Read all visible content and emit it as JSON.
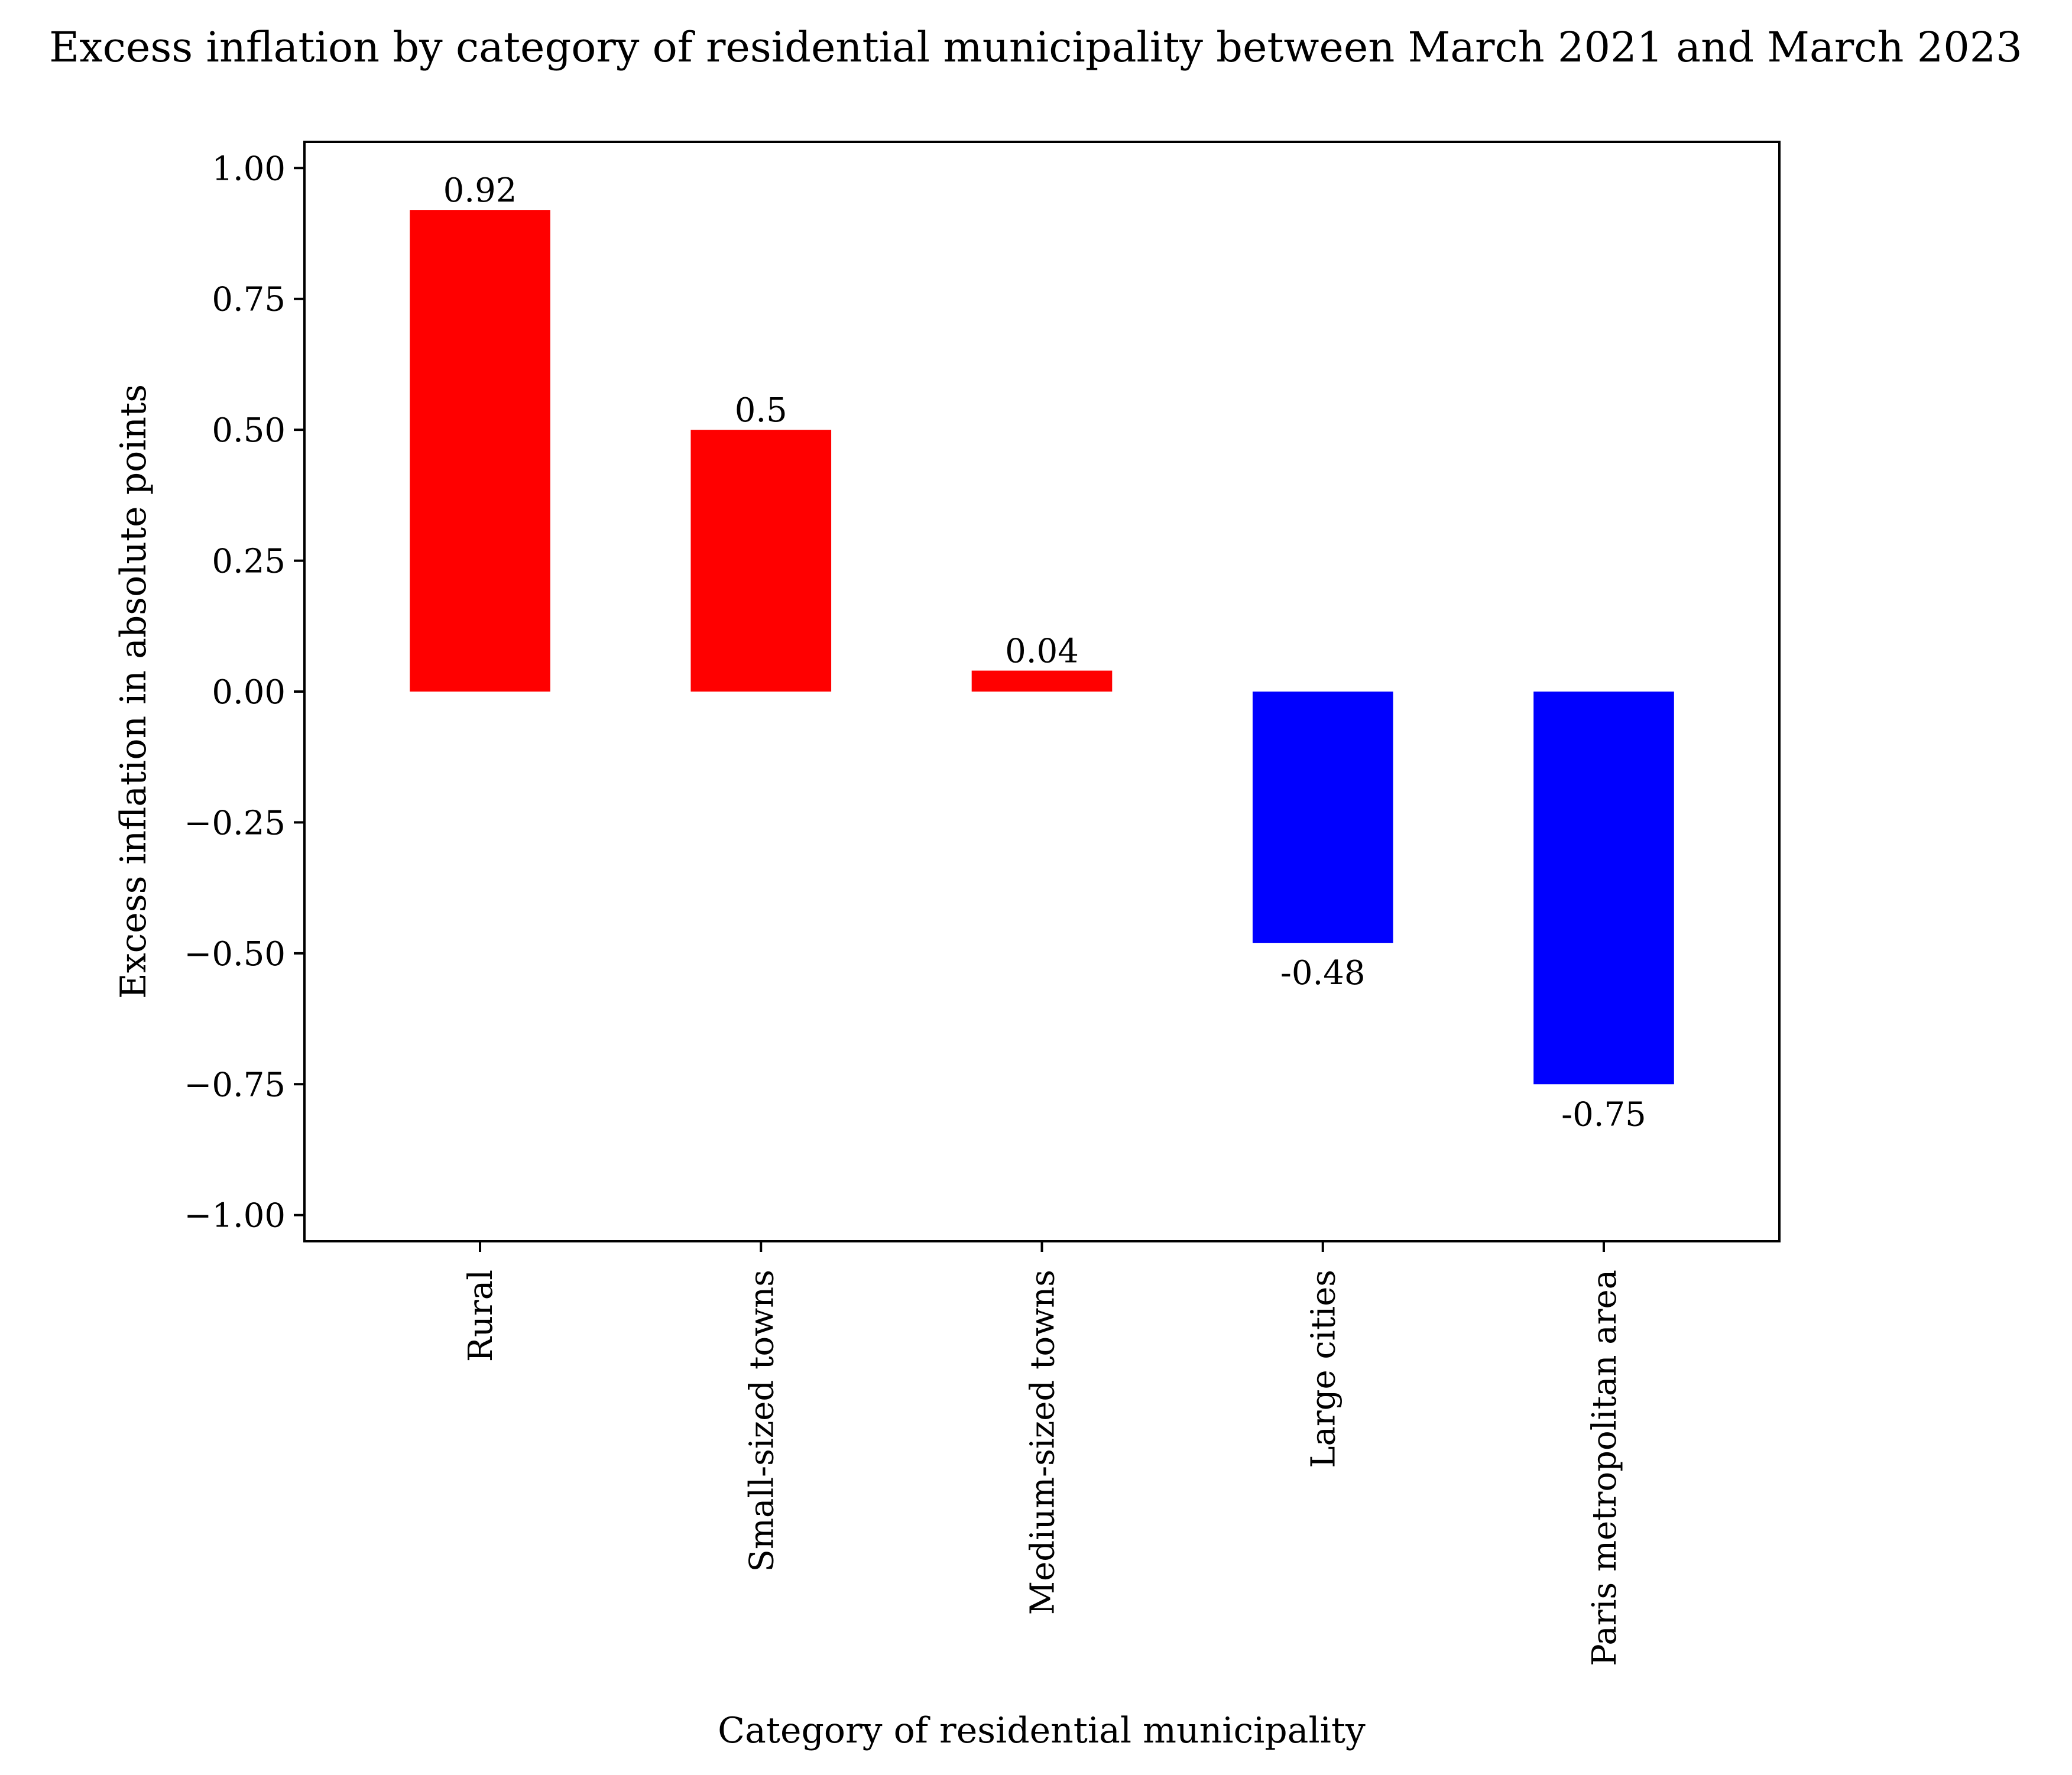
{
  "chart_data": {
    "type": "bar",
    "title": "Excess inflation by category of residential municipality between March 2021 and March 2023",
    "xlabel": "Category of residential municipality",
    "ylabel": "Excess inflation in absolute points",
    "categories": [
      "Rural",
      "Small-sized towns",
      "Medium-sized towns",
      "Large cities",
      "Paris metropolitan area"
    ],
    "values": [
      0.92,
      0.5,
      0.04,
      -0.48,
      -0.75
    ],
    "data_labels": [
      "0.92",
      "0.5",
      "0.04",
      "-0.48",
      "-0.75"
    ],
    "bar_colors": [
      "#ff0000",
      "#ff0000",
      "#ff0000",
      "#0000ff",
      "#0000ff"
    ],
    "ylim": [
      -1.05,
      1.05
    ],
    "yticks": [
      1.0,
      0.75,
      0.5,
      0.25,
      0.0,
      -0.25,
      -0.5,
      -0.75,
      -1.0
    ],
    "ytick_labels": [
      "1.00",
      "0.75",
      "0.50",
      "0.25",
      "0.00",
      "−0.25",
      "−0.50",
      "−0.75",
      "−1.00"
    ],
    "grid": false,
    "legend": false
  }
}
